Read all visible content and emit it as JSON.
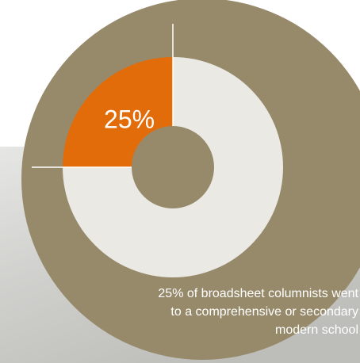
{
  "chart_data": {
    "type": "pie",
    "donut": true,
    "values": [
      25,
      75
    ],
    "value_labels": [
      "25%",
      null
    ],
    "colors": [
      "#e36c0a",
      "#ebe9e4"
    ],
    "annotation": [
      "25% of broadsheet columnists went",
      "to a comprehensive or secondary",
      "modern school"
    ]
  }
}
